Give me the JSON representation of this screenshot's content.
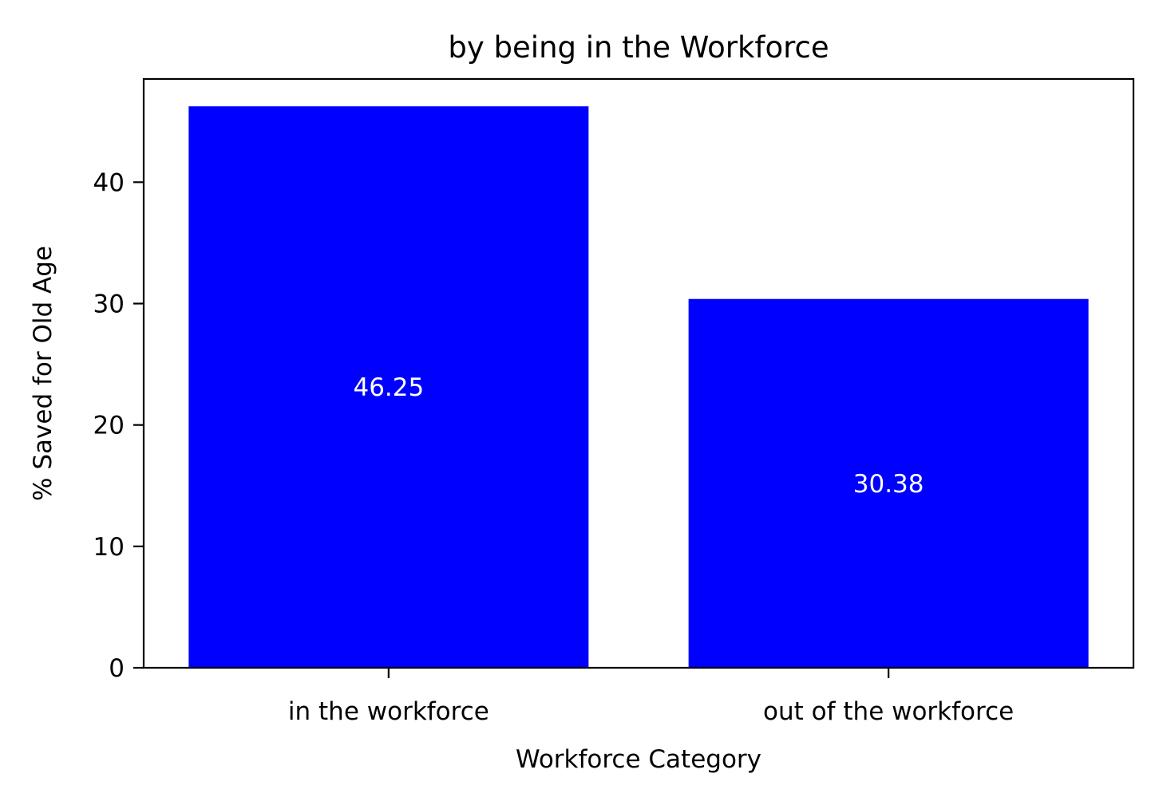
{
  "chart_data": {
    "type": "bar",
    "title": "by being in the Workforce",
    "xlabel": "Workforce Category",
    "ylabel": "% Saved for Old Age",
    "categories": [
      "in the workforce",
      "out of the workforce"
    ],
    "values": [
      46.25,
      30.38
    ],
    "data_labels": [
      "46.25",
      "30.38"
    ],
    "ylim": [
      0,
      48.5
    ],
    "yticks": [
      0,
      10,
      20,
      30,
      40
    ],
    "ytick_labels": [
      "0",
      "10",
      "20",
      "30",
      "40"
    ],
    "bar_color": "#0000ff",
    "data_label_color": "#ffffff",
    "grid": false,
    "legend": "none"
  }
}
